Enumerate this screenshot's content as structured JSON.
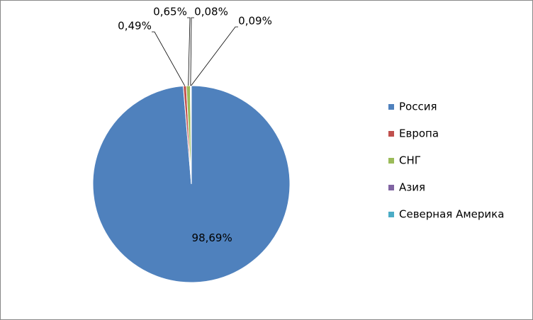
{
  "chart_data": {
    "type": "pie",
    "categories": [
      "Россия",
      "Европа",
      "СНГ",
      "Азия",
      "Северная Америка"
    ],
    "values": [
      98.69,
      0.49,
      0.65,
      0.08,
      0.09
    ],
    "value_labels": [
      "98,69%",
      "0,49%",
      "0,65%",
      "0,08%",
      "0,09%"
    ],
    "colors": [
      "#4f81bd",
      "#c0504d",
      "#9bbb59",
      "#8064a2",
      "#4bacc6"
    ],
    "legend": "right"
  }
}
